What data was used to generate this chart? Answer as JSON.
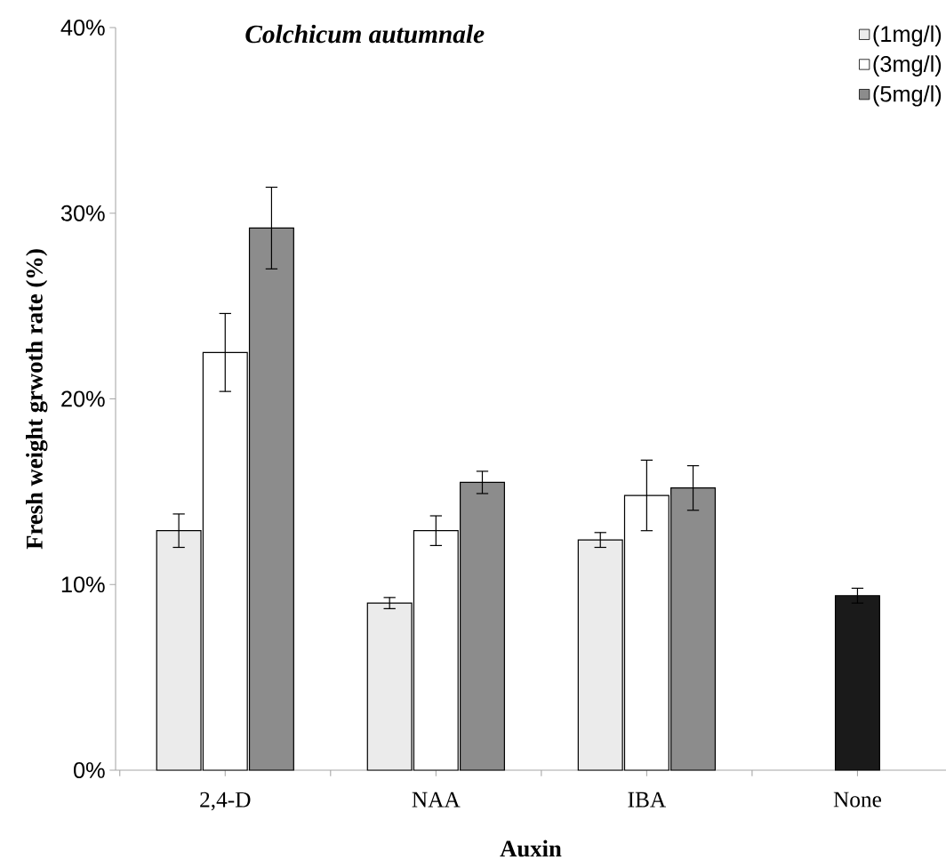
{
  "chart_data": {
    "type": "bar",
    "title": "Colchicum autumnale",
    "xlabel": "Auxin",
    "ylabel": "Fresh weight grwoth rate (%)",
    "categories": [
      "2,4-D",
      "NAA",
      "IBA",
      "None"
    ],
    "series": [
      {
        "name": "(1mg/l)",
        "color": "#ebebeb",
        "values": [
          12.9,
          9.0,
          12.4,
          null
        ],
        "errors": [
          0.9,
          0.3,
          0.4,
          null
        ]
      },
      {
        "name": "(3mg/l)",
        "color": "#ffffff",
        "colors": [
          "#ffffff",
          "#ffffff",
          "#ffffff",
          "#1a1a1a"
        ],
        "values": [
          22.5,
          12.9,
          14.8,
          9.4
        ],
        "errors": [
          2.1,
          0.8,
          1.9,
          0.4
        ]
      },
      {
        "name": "(5mg/l)",
        "color": "#8c8c8c",
        "values": [
          29.2,
          15.5,
          15.2,
          null
        ],
        "errors": [
          2.2,
          0.6,
          1.2,
          null
        ]
      }
    ],
    "ylim": [
      0,
      40
    ],
    "yticks": [
      {
        "value": 0,
        "label": "0%"
      },
      {
        "value": 10,
        "label": "10%"
      },
      {
        "value": 20,
        "label": "20%"
      },
      {
        "value": 30,
        "label": "30%"
      },
      {
        "value": 40,
        "label": "40%"
      }
    ],
    "grid": false,
    "legend": "top right"
  }
}
